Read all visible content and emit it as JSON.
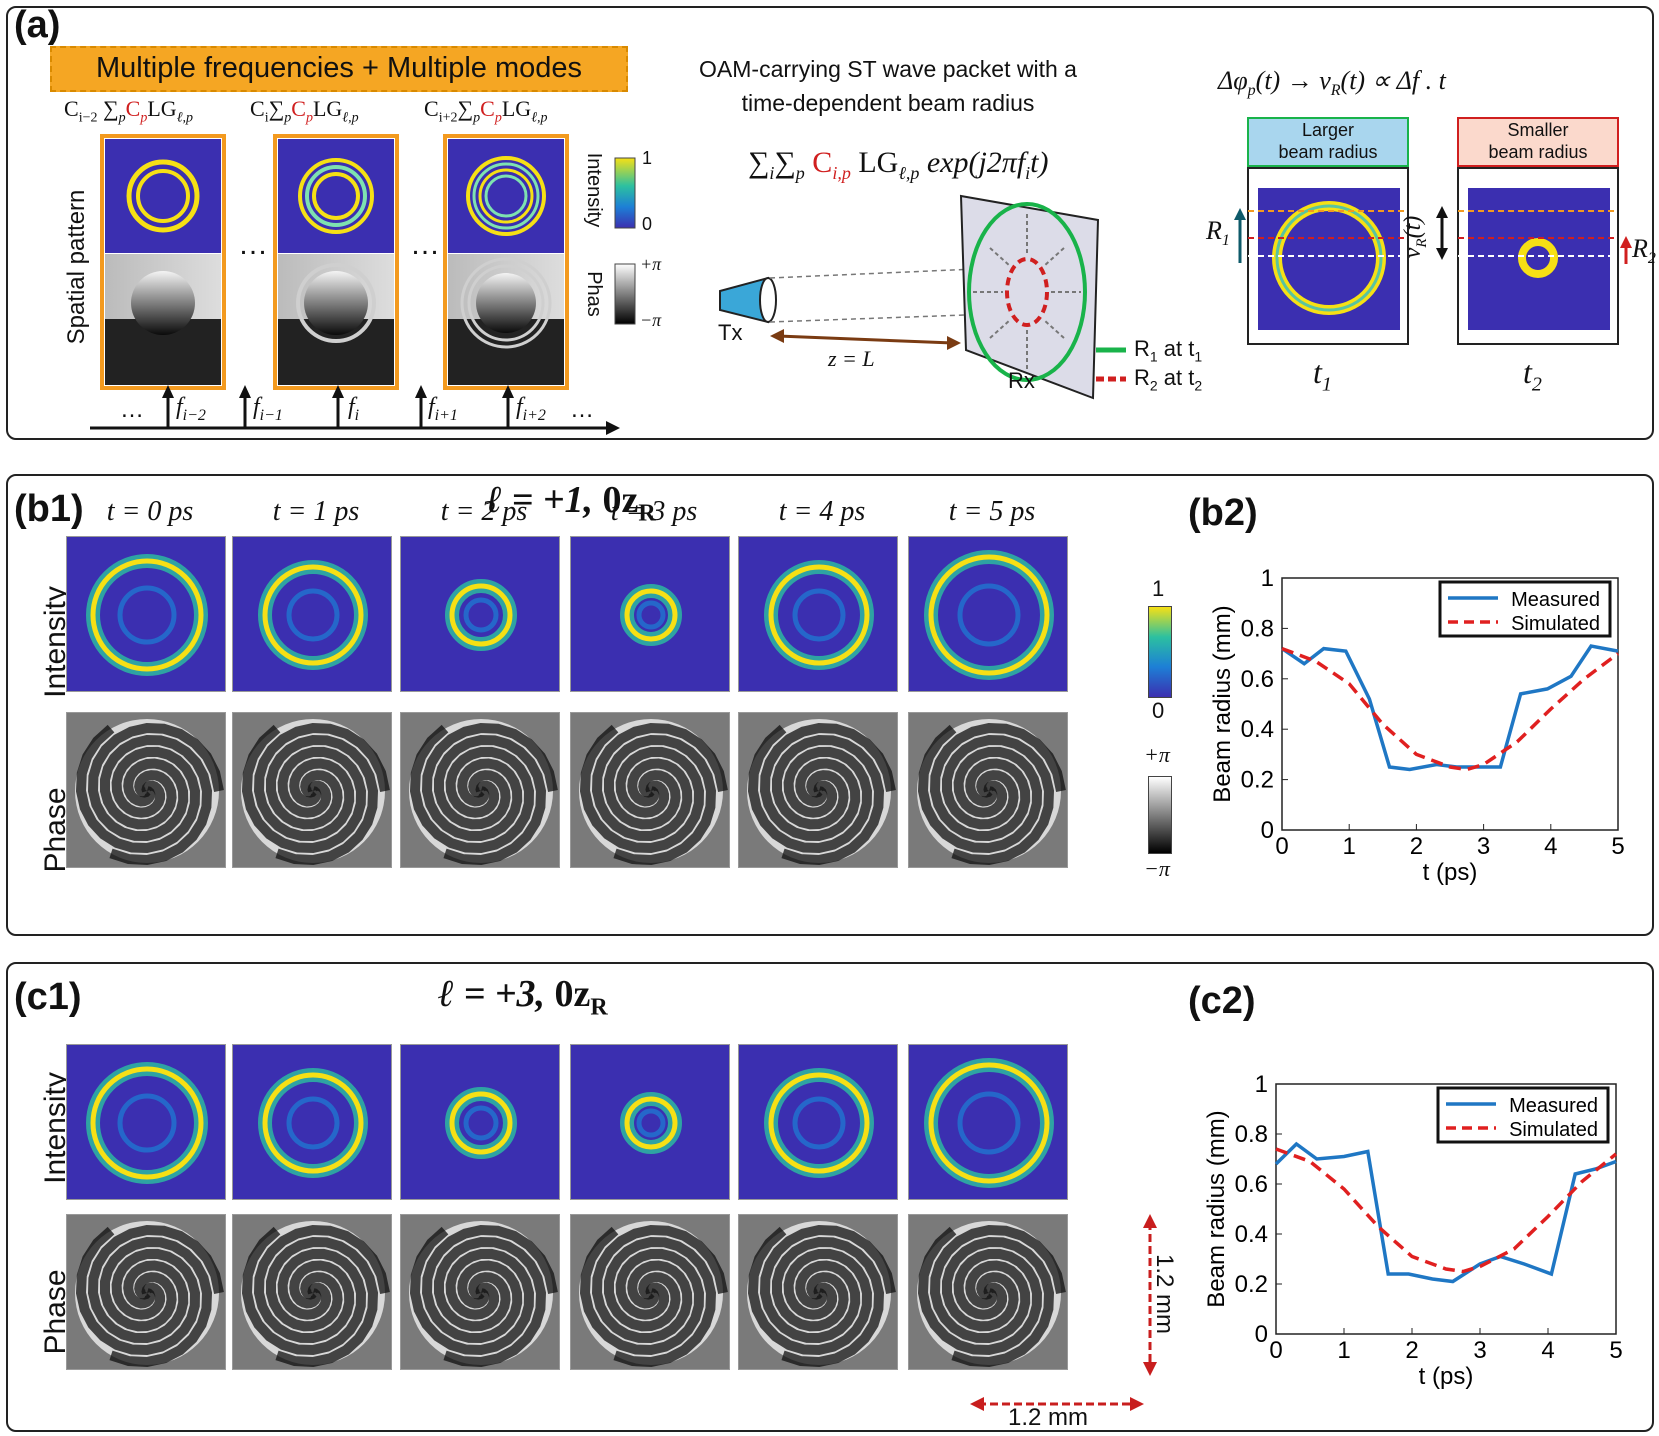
{
  "panel_a": {
    "label": "(a)",
    "banner": "Multiple frequencies + Multiple modes",
    "coef_labels": {
      "left": {
        "c": "C",
        "sub": "i−2",
        "sum": " ∑",
        "p": "p",
        "cp": "C",
        "cp_sub": "p",
        "lg": "LG",
        "lg_sub": "ℓ,p"
      },
      "middle": {
        "c": "C",
        "sub": "i",
        "sum": "∑",
        "p": "p",
        "cp": "C",
        "cp_sub": "p",
        "lg": "LG",
        "lg_sub": "ℓ,p"
      },
      "right": {
        "c": "C",
        "sub": "i+2",
        "sum": "∑",
        "p": "p",
        "cp": "C",
        "cp_sub": "p",
        "lg": "LG",
        "lg_sub": "ℓ,p"
      }
    },
    "spatial_pattern_label": "Spatial pattern",
    "ellipsis": "…",
    "intensity_label": "Intensity",
    "intensity_max": "1",
    "intensity_min": "0",
    "phase_label": "Phas",
    "phase_max": "+π",
    "phase_min": "−π",
    "freq_axis": {
      "ellipsis_left": "…",
      "ellipsis_right": "…",
      "freqs": [
        {
          "f": "f",
          "sub": "i−2"
        },
        {
          "f": "f",
          "sub": "i−1"
        },
        {
          "f": "f",
          "sub": "i"
        },
        {
          "f": "f",
          "sub": "i+1"
        },
        {
          "f": "f",
          "sub": "i+2"
        }
      ]
    },
    "packet_title_line1": "OAM-carrying ST wave packet with a",
    "packet_title_line2": "time-dependent beam radius",
    "packet_equation": {
      "sum1": "∑",
      "i": "i",
      "sum2": "∑",
      "p": "p",
      "c": "C",
      "c_sub": "i,p",
      "lg": "LG",
      "lg_sub": "ℓ,p",
      "exp": "exp(j2πf",
      "exp_sub": "i",
      "exp_end": "t)"
    },
    "tx_label": "Tx",
    "rx_label": "Rx",
    "distance_label": "z = L",
    "legend_r1": {
      "r": "R",
      "sub": "1",
      "rest": " at t",
      "tsub": "1"
    },
    "legend_r2": {
      "r": "R",
      "sub": "2",
      "rest": " at t",
      "tsub": "2"
    },
    "right_eq": "Δφ",
    "right_eq_sub": "p",
    "right_eq_rest": "(t) → v",
    "right_eq_sub2": "R",
    "right_eq_end": "(t) ∝ Δf . t",
    "larger_box_line1": "Larger",
    "larger_box_line2": "beam radius",
    "smaller_box_line1": "Smaller",
    "smaller_box_line2": "beam radius",
    "r1_label": "R",
    "r1_sub": "1",
    "r2_label": "R",
    "r2_sub": "2",
    "vr_label": "v",
    "vr_sub": "R",
    "vr_end": "(t)",
    "t1_label": "t",
    "t1_sub": "1",
    "t2_label": "t",
    "t2_sub": "2",
    "colors": {
      "banner_bg": "#f5a623",
      "orange": "#f39a1f",
      "green": "#19b34a",
      "red": "#d01f1f",
      "blue_box": "#a9d6ee",
      "pink_box": "#fbd9cc",
      "cyan_tx": "#3aa7d8"
    }
  },
  "panel_b": {
    "label_b1": "(b1)",
    "label_b2": "(b2)",
    "title_l": "ℓ = +1, ",
    "title_z": "0z",
    "title_sub": "R",
    "time_labels": [
      "t = 0 ps",
      "t = 1 ps",
      "t = 2 ps",
      "t = 3 ps",
      "t = 4 ps",
      "t = 5 ps"
    ],
    "row_intensity": "Intensity",
    "row_phase": "Phase",
    "cbar_int_max": "1",
    "cbar_int_min": "0",
    "cbar_ph_max": "+π",
    "cbar_ph_min": "−π"
  },
  "panel_c": {
    "label_c1": "(c1)",
    "label_c2": "(c2)",
    "title_l": "ℓ = +3, ",
    "title_z": "0z",
    "title_sub": "R",
    "row_intensity": "Intensity",
    "row_phase": "Phase",
    "scale_v": "1.2 mm",
    "scale_h": "1.2 mm"
  },
  "chart_data": [
    {
      "type": "line",
      "id": "b2",
      "xlabel": "t (ps)",
      "ylabel": "Beam radius (mm)",
      "xlim": [
        0,
        5
      ],
      "ylim": [
        0,
        1
      ],
      "xticks": [
        "0",
        "1",
        "2",
        "3",
        "4",
        "5"
      ],
      "yticks": [
        "0",
        "0.2",
        "0.4",
        "0.6",
        "0.8",
        "1"
      ],
      "legend": "top-right",
      "series": [
        {
          "name": "Measured",
          "color": "#1f77c4",
          "style": "solid",
          "x": [
            0,
            0.33,
            0.62,
            0.95,
            1.3,
            1.6,
            1.9,
            2.3,
            2.6,
            2.95,
            3.25,
            3.55,
            3.95,
            4.3,
            4.6,
            5.0
          ],
          "y": [
            0.72,
            0.66,
            0.72,
            0.71,
            0.52,
            0.25,
            0.24,
            0.26,
            0.25,
            0.25,
            0.25,
            0.54,
            0.56,
            0.61,
            0.73,
            0.71
          ]
        },
        {
          "name": "Simulated",
          "color": "#e02020",
          "style": "dashed",
          "x": [
            0,
            0.5,
            1.0,
            1.5,
            2.0,
            2.5,
            2.75,
            3.0,
            3.5,
            4.0,
            4.5,
            5.0
          ],
          "y": [
            0.72,
            0.67,
            0.58,
            0.42,
            0.3,
            0.25,
            0.24,
            0.26,
            0.35,
            0.48,
            0.6,
            0.7
          ]
        }
      ]
    },
    {
      "type": "line",
      "id": "c2",
      "xlabel": "t (ps)",
      "ylabel": "Beam radius (mm)",
      "xlim": [
        0,
        5
      ],
      "ylim": [
        0,
        1
      ],
      "xticks": [
        "0",
        "1",
        "2",
        "3",
        "4",
        "5"
      ],
      "yticks": [
        "0",
        "0.2",
        "0.4",
        "0.6",
        "0.8",
        "1"
      ],
      "legend": "top-right",
      "series": [
        {
          "name": "Measured",
          "color": "#1f77c4",
          "style": "solid",
          "x": [
            0,
            0.3,
            0.6,
            1.0,
            1.35,
            1.65,
            1.95,
            2.3,
            2.6,
            3.0,
            3.3,
            3.65,
            4.05,
            4.4,
            4.7,
            5.0
          ],
          "y": [
            0.68,
            0.76,
            0.7,
            0.71,
            0.73,
            0.24,
            0.24,
            0.22,
            0.21,
            0.28,
            0.31,
            0.28,
            0.24,
            0.64,
            0.66,
            0.69
          ]
        },
        {
          "name": "Simulated",
          "color": "#e02020",
          "style": "dashed",
          "x": [
            0,
            0.5,
            1.0,
            1.5,
            2.0,
            2.5,
            2.75,
            3.0,
            3.5,
            4.0,
            4.5,
            5.0
          ],
          "y": [
            0.74,
            0.69,
            0.58,
            0.43,
            0.31,
            0.26,
            0.25,
            0.27,
            0.34,
            0.47,
            0.61,
            0.72
          ]
        }
      ]
    }
  ]
}
